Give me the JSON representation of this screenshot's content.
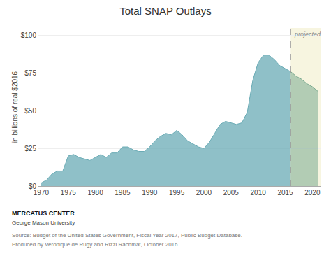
{
  "chart_data": {
    "type": "area",
    "title": "Total SNAP Outlays",
    "ylabel": "in billions of real $2016",
    "x": [
      1970,
      1971,
      1972,
      1973,
      1974,
      1975,
      1976,
      1977,
      1978,
      1979,
      1980,
      1981,
      1982,
      1983,
      1984,
      1985,
      1986,
      1987,
      1988,
      1989,
      1990,
      1991,
      1992,
      1993,
      1994,
      1995,
      1996,
      1997,
      1998,
      1999,
      2000,
      2001,
      2002,
      2003,
      2004,
      2005,
      2006,
      2007,
      2008,
      2009,
      2010,
      2011,
      2012,
      2013,
      2014,
      2015,
      2016,
      2017,
      2018,
      2019,
      2020,
      2021
    ],
    "series": [
      {
        "color": "#6aabb5",
        "values": [
          2,
          4,
          8,
          10,
          10,
          20,
          21,
          19,
          18,
          17,
          19,
          21,
          19,
          22,
          22,
          26,
          26,
          24,
          23,
          23,
          26,
          30,
          33,
          35,
          34,
          37,
          34,
          30,
          28,
          26,
          25,
          29,
          35,
          41,
          43,
          42,
          41,
          42,
          49,
          70,
          82,
          87,
          87,
          84,
          80,
          78,
          76,
          null,
          null,
          null,
          null,
          null
        ]
      },
      {
        "color": "#7aaa90",
        "values": [
          null,
          null,
          null,
          null,
          null,
          null,
          null,
          null,
          null,
          null,
          null,
          null,
          null,
          null,
          null,
          null,
          null,
          null,
          null,
          null,
          null,
          null,
          null,
          null,
          null,
          null,
          null,
          null,
          null,
          null,
          null,
          null,
          null,
          null,
          null,
          null,
          null,
          null,
          null,
          null,
          null,
          null,
          null,
          null,
          null,
          null,
          76,
          73,
          71,
          68,
          66,
          63
        ]
      }
    ],
    "projection_start": 2016,
    "xlim": [
      1969.5,
      2021.5
    ],
    "xticks": [
      1970,
      1975,
      1980,
      1985,
      1990,
      1995,
      2000,
      2005,
      2010,
      2015,
      2020
    ],
    "ylim": [
      0,
      105
    ],
    "yticks": [
      {
        "value": 0,
        "label": "$0"
      },
      {
        "value": 25,
        "label": "$25"
      },
      {
        "value": 50,
        "label": "$50"
      },
      {
        "value": 75,
        "label": "$75"
      },
      {
        "value": 100,
        "label": "$100"
      }
    ],
    "grid": true,
    "annotations": [
      {
        "text": "projected",
        "x": 2016
      },
      {
        "text": "MERCATUS CENTER"
      },
      {
        "text": "George Mason University"
      },
      {
        "text": "Source: Budget of the United States Government, Fiscal Year 2017, Public Budget Database."
      },
      {
        "text": "Produced by Veronique de Rugy and Rizzi Rachmat, October 2016."
      }
    ]
  }
}
